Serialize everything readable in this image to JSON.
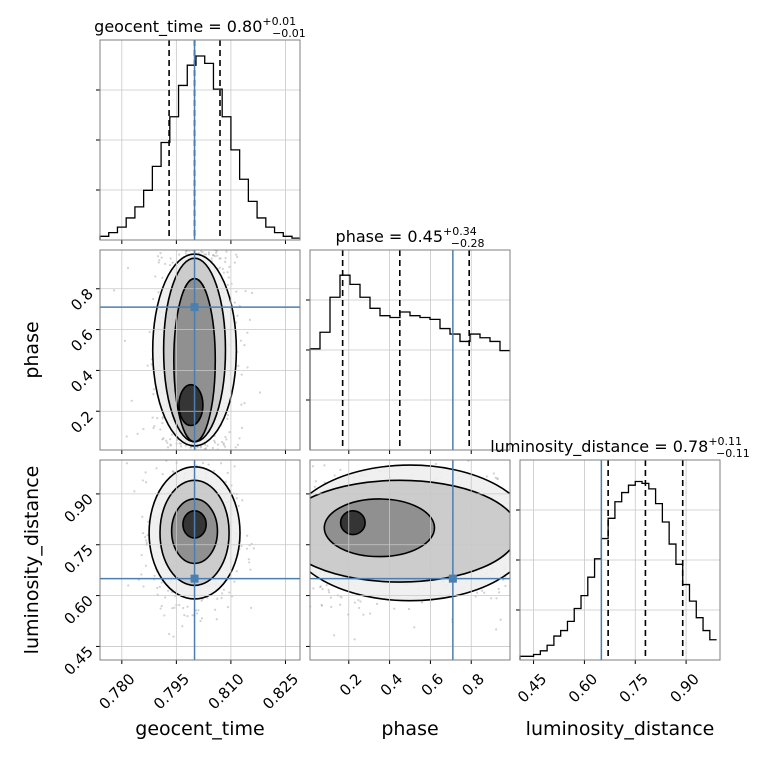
{
  "chart_data": {
    "type": "corner",
    "grid": true,
    "parameters": [
      "geocent_time",
      "phase",
      "luminosity_distance"
    ],
    "truth": {
      "geocent_time": 0.8,
      "phase": 0.71,
      "luminosity_distance": 0.65
    },
    "colors": {
      "truth": "#4a7fb0",
      "contour": "#000000",
      "grid": "#c8c8c8",
      "frame": "#7f7f7f",
      "scatter": "#9a9a9a"
    },
    "marginals": [
      {
        "param": "geocent_time",
        "title_prefix": "geocent_time = ",
        "median": "0.80",
        "plus": "+0.01",
        "minus": "−0.01",
        "quantiles": [
          0.793,
          0.8,
          0.807
        ],
        "xlim": [
          0.774,
          0.829
        ],
        "bin_edges_start": 0.774,
        "bin_width": 0.0024,
        "counts": [
          0.02,
          0.04,
          0.07,
          0.12,
          0.18,
          0.27,
          0.4,
          0.53,
          0.67,
          0.84,
          0.95,
          1.0,
          0.96,
          0.82,
          0.67,
          0.49,
          0.33,
          0.21,
          0.12,
          0.07,
          0.04,
          0.02,
          0.01
        ],
        "xticks": [],
        "xticklabels": []
      },
      {
        "param": "phase",
        "title_prefix": "phase = ",
        "median": "0.45",
        "plus": "+0.34",
        "minus": "−0.28",
        "quantiles": [
          0.17,
          0.45,
          0.79
        ],
        "xlim": [
          0.01,
          0.99
        ],
        "bin_edges_start": 0.01,
        "bin_width": 0.049,
        "counts": [
          0.55,
          0.64,
          0.83,
          0.95,
          0.9,
          0.83,
          0.77,
          0.73,
          0.72,
          0.75,
          0.73,
          0.72,
          0.71,
          0.66,
          0.63,
          0.59,
          0.63,
          0.61,
          0.59,
          0.54
        ],
        "xticks": [],
        "xticklabels": []
      },
      {
        "param": "luminosity_distance",
        "title_prefix": "luminosity_distance = ",
        "median": "0.78",
        "plus": "+0.11",
        "minus": "−0.11",
        "quantiles": [
          0.67,
          0.78,
          0.89
        ],
        "xlim": [
          0.41,
          1.0
        ],
        "bin_edges_start": 0.41,
        "bin_width": 0.02,
        "counts": [
          0.02,
          0.02,
          0.03,
          0.05,
          0.08,
          0.13,
          0.16,
          0.21,
          0.28,
          0.35,
          0.45,
          0.55,
          0.66,
          0.77,
          0.86,
          0.91,
          0.95,
          0.97,
          0.96,
          0.93,
          0.85,
          0.75,
          0.63,
          0.52,
          0.41,
          0.32,
          0.23,
          0.16,
          0.11
        ],
        "xticks": [
          0.45,
          0.6,
          0.75,
          0.9
        ],
        "xticklabels": [
          "0.45",
          "0.60",
          "0.75",
          "0.90"
        ]
      }
    ],
    "pairs": [
      {
        "x": "geocent_time",
        "y": "phase",
        "xlim": [
          0.774,
          0.829
        ],
        "ylim": [
          0.01,
          0.99
        ],
        "xticks": [],
        "xticklabels": [],
        "yticks": [
          0.2,
          0.4,
          0.6,
          0.8
        ],
        "yticklabels": [
          "0.2",
          "0.4",
          "0.6",
          "0.8"
        ],
        "center": [
          0.8,
          0.5
        ],
        "spread": [
          0.0055,
          0.3
        ],
        "contours": [
          {
            "cx": 0.8,
            "cy": 0.5,
            "rx": 0.0115,
            "ry": 0.47
          },
          {
            "cx": 0.8,
            "cy": 0.5,
            "rx": 0.0085,
            "ry": 0.45
          },
          {
            "cx": 0.8,
            "cy": 0.45,
            "rx": 0.0057,
            "ry": 0.4
          },
          {
            "cx": 0.799,
            "cy": 0.23,
            "rx": 0.0033,
            "ry": 0.1
          }
        ]
      },
      {
        "x": "geocent_time",
        "y": "luminosity_distance",
        "xlim": [
          0.774,
          0.829
        ],
        "ylim": [
          0.41,
          1.0
        ],
        "xticks": [
          0.78,
          0.795,
          0.81,
          0.825
        ],
        "xticklabels": [
          "0.780",
          "0.795",
          "0.810",
          "0.825"
        ],
        "yticks": [
          0.45,
          0.6,
          0.75,
          0.9
        ],
        "yticklabels": [
          "0.45",
          "0.60",
          "0.75",
          "0.90"
        ],
        "center": [
          0.8,
          0.78
        ],
        "spread": [
          0.0055,
          0.1
        ],
        "contours": [
          {
            "cx": 0.8,
            "cy": 0.785,
            "rx": 0.0125,
            "ry": 0.195
          },
          {
            "cx": 0.8,
            "cy": 0.785,
            "rx": 0.0095,
            "ry": 0.155
          },
          {
            "cx": 0.8,
            "cy": 0.79,
            "rx": 0.0063,
            "ry": 0.095
          },
          {
            "cx": 0.8,
            "cy": 0.81,
            "rx": 0.0032,
            "ry": 0.04
          }
        ]
      },
      {
        "x": "phase",
        "y": "luminosity_distance",
        "xlim": [
          0.01,
          0.99
        ],
        "ylim": [
          0.41,
          1.0
        ],
        "xticks": [
          0.2,
          0.4,
          0.6,
          0.8
        ],
        "xticklabels": [
          "0.2",
          "0.4",
          "0.6",
          "0.8"
        ],
        "yticks": [],
        "yticklabels": [],
        "center": [
          0.45,
          0.78
        ],
        "spread": [
          0.3,
          0.1
        ],
        "contours": [
          {
            "cx": 0.5,
            "cy": 0.785,
            "rx": 0.6,
            "ry": 0.2
          },
          {
            "cx": 0.45,
            "cy": 0.79,
            "rx": 0.58,
            "ry": 0.15
          },
          {
            "cx": 0.35,
            "cy": 0.8,
            "rx": 0.27,
            "ry": 0.085
          },
          {
            "cx": 0.22,
            "cy": 0.815,
            "rx": 0.06,
            "ry": 0.035
          }
        ]
      }
    ]
  }
}
